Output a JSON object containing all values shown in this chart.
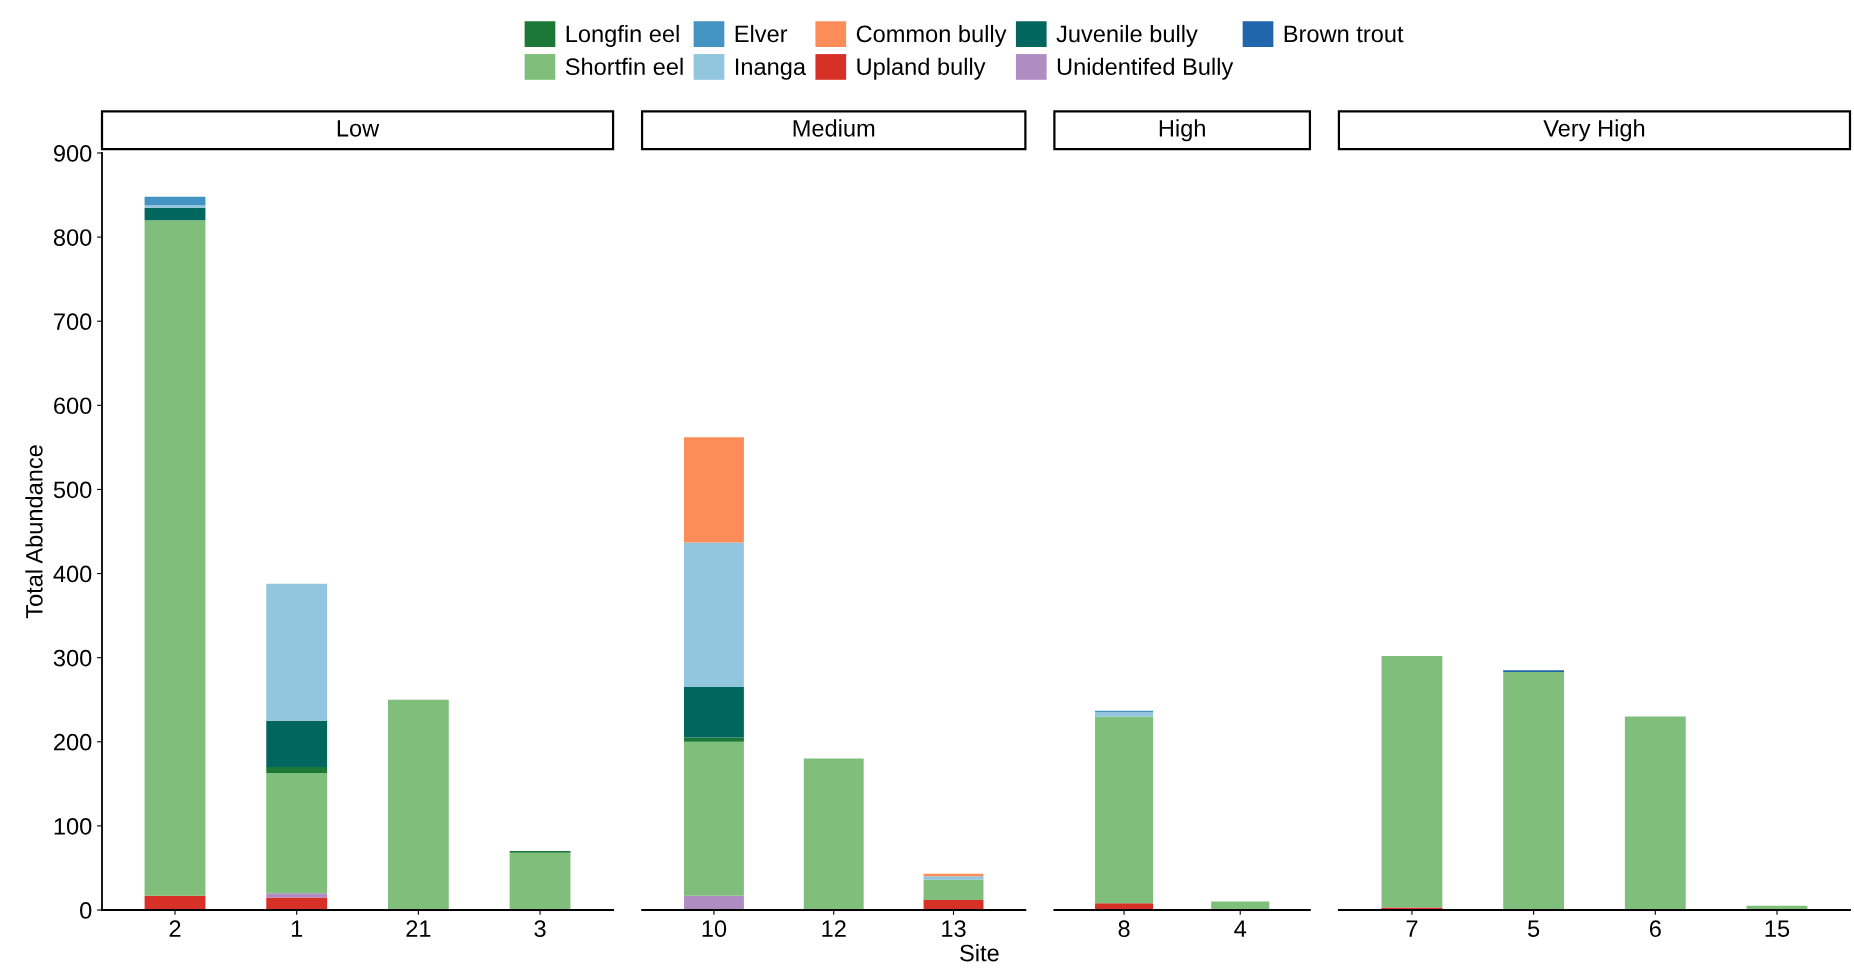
{
  "chart_data": [
    {
      "type": "bar",
      "stacked": true,
      "title": "Low",
      "ylabel": "Total Abundance",
      "legend": "top",
      "grid": false,
      "categories": [
        "2",
        "1",
        "21",
        "3"
      ],
      "ylim": [
        0,
        900
      ],
      "yticks": [
        0,
        100,
        200,
        300,
        400,
        500,
        600,
        700,
        800,
        900
      ],
      "series": [
        {
          "name": "Upland bully",
          "color": "#d73027",
          "values": [
            17,
            15,
            0,
            0
          ]
        },
        {
          "name": "Unidentifed Bully",
          "color": "#af8dc3",
          "values": [
            0,
            5,
            0,
            0
          ]
        },
        {
          "name": "Shortfin eel",
          "color": "#7fbf7b",
          "values": [
            803,
            143,
            250,
            68
          ]
        },
        {
          "name": "Longfin eel",
          "color": "#1b7837",
          "values": [
            0,
            7,
            0,
            2
          ]
        },
        {
          "name": "Juvenile bully",
          "color": "#01665e",
          "values": [
            15,
            55,
            0,
            0
          ]
        },
        {
          "name": "Inanga",
          "color": "#92c5de",
          "values": [
            3,
            163,
            0,
            0
          ]
        },
        {
          "name": "Elver",
          "color": "#4393c3",
          "values": [
            10,
            0,
            0,
            0
          ]
        },
        {
          "name": "Common bully",
          "color": "#fc8d59",
          "values": [
            0,
            0,
            0,
            0
          ]
        },
        {
          "name": "Brown trout",
          "color": "#2166ac",
          "values": [
            0,
            0,
            0,
            0
          ]
        }
      ]
    },
    {
      "type": "bar",
      "stacked": true,
      "title": "Medium",
      "xlabel": "Site",
      "tick_labels": "x",
      "categories": [
        "10",
        "12",
        "13"
      ],
      "ylim": [
        0,
        900
      ],
      "series": [
        {
          "color": "#d73027",
          "values": [
            0,
            0,
            12
          ]
        },
        {
          "color": "#af8dc3",
          "values": [
            17,
            0,
            0
          ]
        },
        {
          "color": "#7fbf7b",
          "values": [
            183,
            180,
            24
          ]
        },
        {
          "color": "#1b7837",
          "values": [
            5,
            0,
            0
          ]
        },
        {
          "color": "#01665e",
          "values": [
            60,
            0,
            0
          ]
        },
        {
          "color": "#92c5de",
          "values": [
            172,
            0,
            4
          ]
        },
        {
          "color": "#4393c3",
          "values": [
            0,
            0,
            0
          ]
        },
        {
          "color": "#fc8d59",
          "values": [
            125,
            0,
            3
          ]
        },
        {
          "color": "#2166ac",
          "values": [
            0,
            0,
            0
          ]
        }
      ]
    },
    {
      "type": "bar",
      "stacked": true,
      "title": "High",
      "tick_labels": "x",
      "categories": [
        "8",
        "4"
      ],
      "ylim": [
        0,
        900
      ],
      "series": [
        {
          "color": "#d73027",
          "values": [
            8,
            0
          ]
        },
        {
          "color": "#af8dc3",
          "values": [
            0,
            0
          ]
        },
        {
          "color": "#7fbf7b",
          "values": [
            222,
            10
          ]
        },
        {
          "color": "#1b7837",
          "values": [
            0,
            0
          ]
        },
        {
          "color": "#01665e",
          "values": [
            0,
            0
          ]
        },
        {
          "color": "#92c5de",
          "values": [
            5,
            0
          ]
        },
        {
          "color": "#4393c3",
          "values": [
            2,
            0
          ]
        },
        {
          "color": "#fc8d59",
          "values": [
            0,
            0
          ]
        },
        {
          "color": "#2166ac",
          "values": [
            0,
            0
          ]
        }
      ]
    },
    {
      "type": "bar",
      "stacked": true,
      "title": "Very High",
      "tick_labels": "x",
      "categories": [
        "7",
        "5",
        "6",
        "15"
      ],
      "ylim": [
        0,
        900
      ],
      "series": [
        {
          "color": "#d73027",
          "values": [
            3,
            0,
            0,
            0
          ]
        },
        {
          "color": "#af8dc3",
          "values": [
            0,
            0,
            0,
            0
          ]
        },
        {
          "color": "#7fbf7b",
          "values": [
            299,
            283,
            230,
            5
          ]
        },
        {
          "color": "#1b7837",
          "values": [
            0,
            0,
            0,
            0
          ]
        },
        {
          "color": "#01665e",
          "values": [
            0,
            0,
            0,
            0
          ]
        },
        {
          "color": "#92c5de",
          "values": [
            0,
            0,
            0,
            0
          ]
        },
        {
          "color": "#4393c3",
          "values": [
            0,
            0,
            0,
            0
          ]
        },
        {
          "color": "#fc8d59",
          "values": [
            0,
            0,
            0,
            0
          ]
        },
        {
          "color": "#2166ac",
          "values": [
            0,
            2,
            0,
            0
          ]
        }
      ]
    }
  ]
}
